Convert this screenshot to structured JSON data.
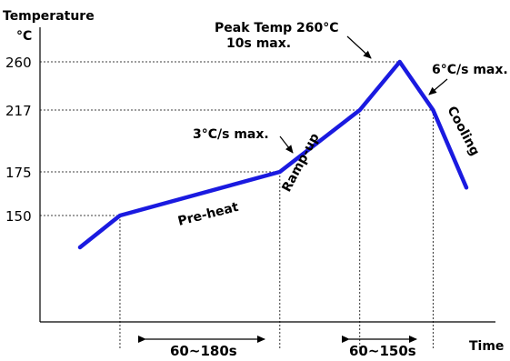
{
  "chart_data": {
    "type": "line",
    "ylabel": "Temperature",
    "yunit": "°C",
    "xlabel": "Time",
    "yticks": [
      260,
      217,
      175,
      150
    ],
    "line_color": "#1a1ae0",
    "series": [
      {
        "points": [
          {
            "x": 0,
            "y": 93
          },
          {
            "x": 30,
            "y": 150
          },
          {
            "x": 150,
            "y": 175
          },
          {
            "x": 210,
            "y": 217
          },
          {
            "x": 240,
            "y": 260
          },
          {
            "x": 265,
            "y": 217
          },
          {
            "x": 290,
            "y": 166
          }
        ]
      }
    ],
    "annotations": {
      "peak_line1": "Peak Temp 260°C",
      "peak_line2": "10s max.",
      "ramp_rate": "3°C/s max.",
      "cool_rate": "6°C/s max."
    },
    "phases": {
      "preheat": "Pre-heat",
      "rampup": "Ramp-up",
      "cooling": "Cooling"
    },
    "spans": [
      {
        "label": "60~180s"
      },
      {
        "label": "60~150s"
      }
    ]
  }
}
